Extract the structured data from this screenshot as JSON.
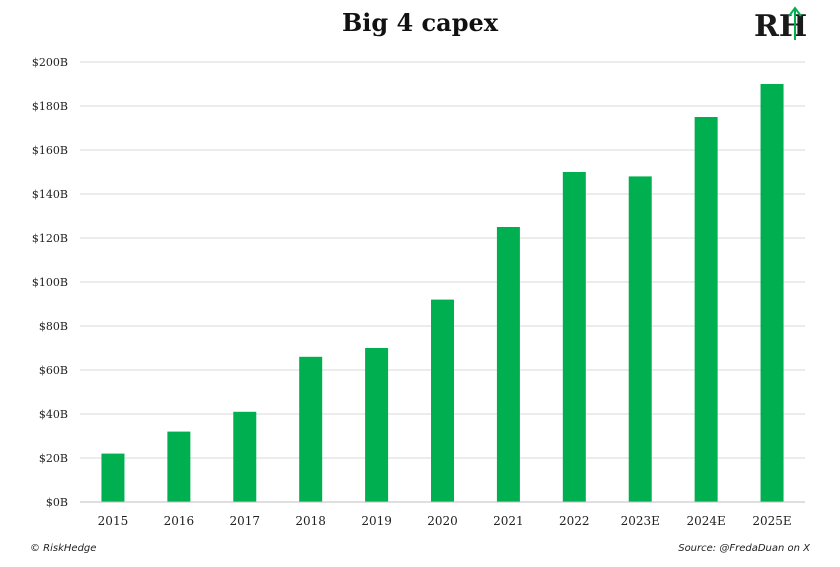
{
  "logo": {
    "name": "riskhedge-logo",
    "text": "RH",
    "color": "#1a1a1a",
    "accent": "#00b050"
  },
  "footer": {
    "left": "© RiskHedge",
    "right": "Source: @FredaDuan on X"
  },
  "chart_data": {
    "type": "bar",
    "title": "Big 4 capex",
    "xlabel": "",
    "ylabel": "",
    "categories": [
      "2015",
      "2016",
      "2017",
      "2018",
      "2019",
      "2020",
      "2021",
      "2022",
      "2023E",
      "2024E",
      "2025E"
    ],
    "values": [
      22,
      32,
      41,
      66,
      70,
      92,
      125,
      150,
      148,
      175,
      190
    ],
    "ylim": [
      0,
      200
    ],
    "yticks": [
      0,
      20,
      40,
      60,
      80,
      100,
      120,
      140,
      160,
      180,
      200
    ],
    "ytick_labels": [
      "$0B",
      "$20B",
      "$40B",
      "$60B",
      "$80B",
      "$100B",
      "$120B",
      "$140B",
      "$160B",
      "$180B",
      "$200B"
    ],
    "grid": true,
    "bar_color": "#00b050",
    "grid_color": "#d9d9d9"
  }
}
